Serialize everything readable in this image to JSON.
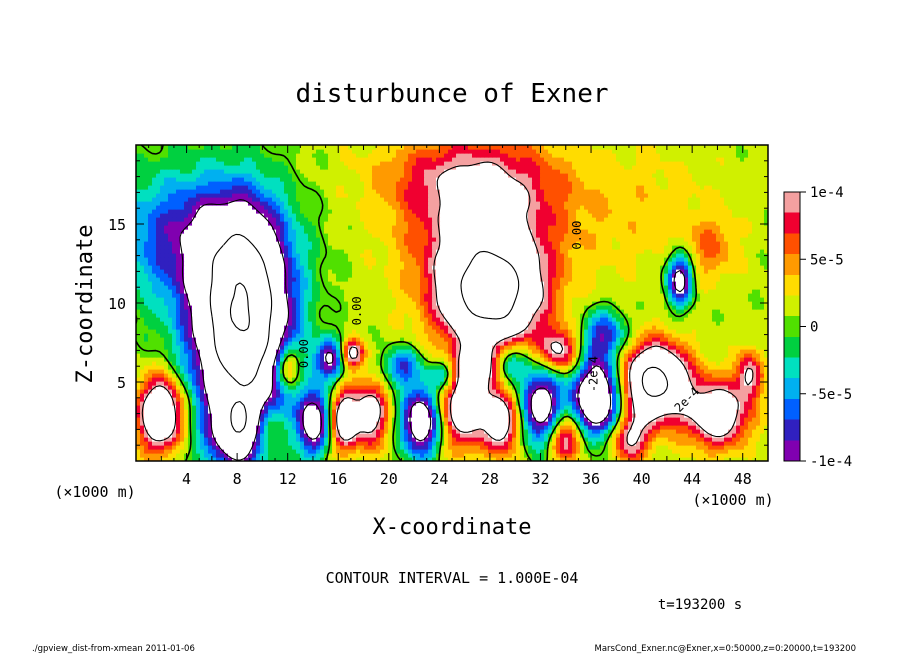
{
  "chart_data": {
    "type": "heatmap",
    "title": "disturbunce of Exner",
    "xlabel": "X-coordinate",
    "ylabel": "Z-coordinate",
    "x_unit": "(×1000 m)",
    "z_unit": "(×1000 m)",
    "xlim": [
      0,
      50
    ],
    "ylim": [
      0,
      20
    ],
    "x_ticks": [
      "4",
      "8",
      "12",
      "16",
      "20",
      "24",
      "28",
      "32",
      "36",
      "40",
      "44",
      "48"
    ],
    "x_tick_values": [
      4,
      8,
      12,
      16,
      20,
      24,
      28,
      32,
      36,
      40,
      44,
      48
    ],
    "y_ticks": [
      "5",
      "10",
      "15"
    ],
    "y_tick_values": [
      5,
      10,
      15
    ],
    "colorbar": {
      "ticks": [
        "1e-4",
        "5e-5",
        "0",
        "-5e-5",
        "-1e-4"
      ],
      "tick_values": [
        0.0001,
        5e-05,
        0,
        -5e-05,
        -0.0001
      ],
      "range": [
        -0.0001,
        0.0001
      ],
      "colors": [
        "#f4a0a0",
        "#f00030",
        "#ff5000",
        "#ff9a00",
        "#ffdc00",
        "#d0f000",
        "#50e000",
        "#00d040",
        "#00e0c0",
        "#00b0f0",
        "#0060ff",
        "#3020c0",
        "#8000b0"
      ]
    },
    "contour_interval": "CONTOUR INTERVAL = 1.000E-04",
    "contour_labels": [
      "0.00",
      "0.00",
      "0.00",
      "-2e-4",
      "2e-4"
    ],
    "time_label": "t=193200 s",
    "blobs": [
      {
        "x": 8.5,
        "z": 9.5,
        "v": -0.00022,
        "sx": 3.2,
        "sz": 5.5
      },
      {
        "x": 8.0,
        "z": 7.0,
        "v": -0.0001,
        "sx": 4.5,
        "sz": 8.0
      },
      {
        "x": 6.0,
        "z": 14.0,
        "v": -6e-05,
        "sx": 6.0,
        "sz": 4.0
      },
      {
        "x": 2.0,
        "z": 14.5,
        "v": -4e-05,
        "sx": 5.0,
        "sz": 4.5
      },
      {
        "x": 28.0,
        "z": 10.5,
        "v": 0.00022,
        "sx": 3.8,
        "sz": 3.2
      },
      {
        "x": 27.5,
        "z": 15.0,
        "v": 9e-05,
        "sx": 6.0,
        "sz": 4.5
      },
      {
        "x": 26.0,
        "z": 18.0,
        "v": 5e-05,
        "sx": 7.0,
        "sz": 2.5
      },
      {
        "x": 40.0,
        "z": 16.0,
        "v": 2e-05,
        "sx": 6.0,
        "sz": 4.0
      },
      {
        "x": 43.0,
        "z": 11.5,
        "v": -0.00014,
        "sx": 1.0,
        "sz": 1.6
      },
      {
        "x": 45.5,
        "z": 13.5,
        "v": 4e-05,
        "sx": 2.0,
        "sz": 2.0
      },
      {
        "x": 15.5,
        "z": 6.5,
        "v": -0.00012,
        "sx": 1.3,
        "sz": 1.2
      },
      {
        "x": 17.0,
        "z": 6.8,
        "v": 0.00013,
        "sx": 1.0,
        "sz": 0.9
      },
      {
        "x": 12.0,
        "z": 6.0,
        "v": 0.00011,
        "sx": 1.0,
        "sz": 1.4
      },
      {
        "x": 21.0,
        "z": 6.0,
        "v": -8e-05,
        "sx": 1.5,
        "sz": 1.2
      },
      {
        "x": 24.5,
        "z": 5.5,
        "v": -7e-05,
        "sx": 1.2,
        "sz": 1.0
      },
      {
        "x": 27.0,
        "z": 6.0,
        "v": 0.00011,
        "sx": 1.5,
        "sz": 1.2
      },
      {
        "x": 29.5,
        "z": 6.2,
        "v": -8e-05,
        "sx": 1.3,
        "sz": 1.2
      },
      {
        "x": 33.5,
        "z": 7.0,
        "v": 0.0001,
        "sx": 1.6,
        "sz": 1.4
      },
      {
        "x": 36.5,
        "z": 4.0,
        "v": -0.0002,
        "sx": 2.0,
        "sz": 2.4
      },
      {
        "x": 37.0,
        "z": 8.0,
        "v": -9e-05,
        "sx": 1.8,
        "sz": 1.6
      },
      {
        "x": 41.0,
        "z": 5.0,
        "v": 0.00022,
        "sx": 2.6,
        "sz": 2.3
      },
      {
        "x": 46.0,
        "z": 3.0,
        "v": 0.00014,
        "sx": 2.4,
        "sz": 2.0
      },
      {
        "x": 2.0,
        "z": 3.0,
        "v": 0.00018,
        "sx": 1.8,
        "sz": 2.3
      },
      {
        "x": 14.0,
        "z": 2.5,
        "v": -0.00014,
        "sx": 1.2,
        "sz": 2.0
      },
      {
        "x": 16.5,
        "z": 2.6,
        "v": 0.00014,
        "sx": 1.0,
        "sz": 1.8
      },
      {
        "x": 18.5,
        "z": 3.0,
        "v": 0.00012,
        "sx": 1.4,
        "sz": 2.0
      },
      {
        "x": 22.5,
        "z": 2.5,
        "v": -0.00016,
        "sx": 1.5,
        "sz": 2.2
      },
      {
        "x": 26.0,
        "z": 3.5,
        "v": 0.00014,
        "sx": 1.8,
        "sz": 2.5
      },
      {
        "x": 29.0,
        "z": 2.5,
        "v": 0.00012,
        "sx": 1.4,
        "sz": 2.0
      },
      {
        "x": 32.0,
        "z": 3.5,
        "v": -0.00015,
        "sx": 1.6,
        "sz": 2.5
      },
      {
        "x": 34.0,
        "z": 1.5,
        "v": 0.0001,
        "sx": 1.5,
        "sz": 1.5
      },
      {
        "x": 39.0,
        "z": 1.5,
        "v": 0.0001,
        "sx": 1.5,
        "sz": 1.5
      },
      {
        "x": 48.5,
        "z": 5.5,
        "v": 9e-05,
        "sx": 1.0,
        "sz": 1.5
      },
      {
        "x": 10.5,
        "z": 2.0,
        "v": 6e-05,
        "sx": 1.2,
        "sz": 1.5
      },
      {
        "x": 8.0,
        "z": 2.0,
        "v": -0.00012,
        "sx": 1.8,
        "sz": 2.0
      }
    ]
  },
  "footer": {
    "left": "./gpview_dist-from-xmean   2011-01-06",
    "right": "MarsCond_Exner.nc@Exner,x=0:50000,z=0:20000,t=193200"
  }
}
